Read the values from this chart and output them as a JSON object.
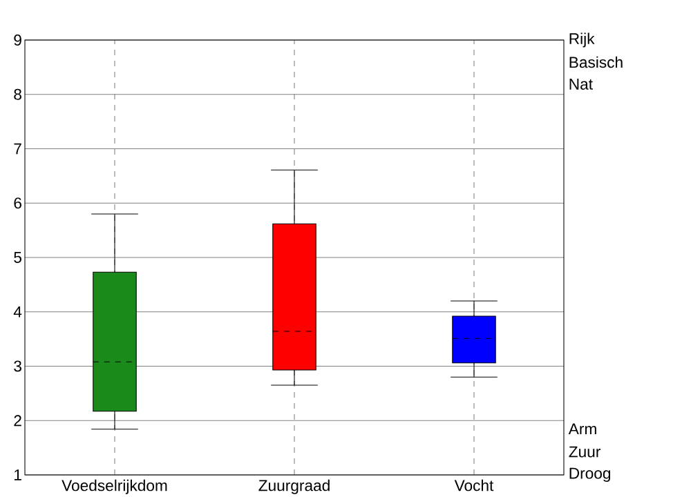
{
  "chart_data": {
    "type": "box",
    "categories": [
      "Voedselrijkdom",
      "Zuurgraad",
      "Vocht"
    ],
    "boxes": [
      {
        "low": 1.84,
        "q1": 2.17,
        "median": 3.08,
        "q3": 4.73,
        "high": 5.8
      },
      {
        "low": 2.65,
        "q1": 2.93,
        "median": 3.64,
        "q3": 5.62,
        "high": 6.61
      },
      {
        "low": 2.8,
        "q1": 3.06,
        "median": 3.51,
        "q3": 3.92,
        "high": 4.2
      }
    ],
    "colors": [
      "#1a8a1a",
      "#ff0000",
      "#0000ff"
    ],
    "ylim": [
      1,
      9
    ],
    "yticks": [
      1,
      2,
      3,
      4,
      5,
      6,
      7,
      8,
      9
    ],
    "grid": true,
    "annotations": [
      "Rijk",
      "Basisch",
      "Nat",
      "Arm",
      "Zuur",
      "Droog"
    ]
  }
}
